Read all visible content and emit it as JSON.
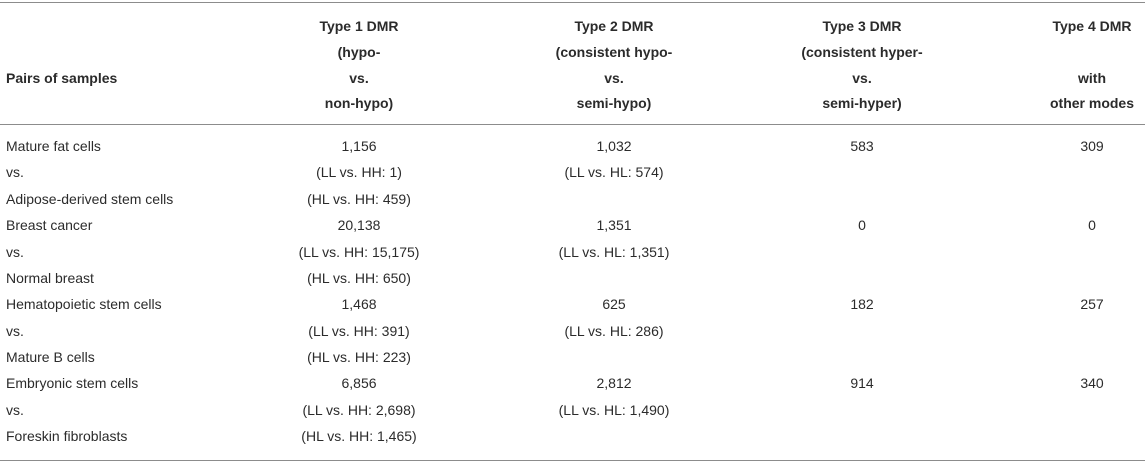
{
  "headers": {
    "pairs": "Pairs of samples",
    "type1": [
      "Type 1 DMR",
      "(hypo-",
      "vs.",
      "non-hypo)"
    ],
    "type2": [
      "Type 2 DMR",
      "(consistent hypo-",
      "vs.",
      "semi-hypo)"
    ],
    "type3": [
      "Type 3 DMR",
      "(consistent hyper-",
      "vs.",
      "semi-hyper)"
    ],
    "type4": [
      "Type 4 DMR",
      "",
      "with",
      "other modes"
    ]
  },
  "rows": [
    {
      "pair": [
        "Mature fat cells",
        "vs.",
        "Adipose-derived stem cells"
      ],
      "type1": [
        "1,156",
        "(LL vs. HH: 1)",
        "(HL vs. HH: 459)"
      ],
      "type2": [
        "1,032",
        "(LL vs. HL: 574)"
      ],
      "type3": "583",
      "type4": "309"
    },
    {
      "pair": [
        "Breast cancer",
        "vs.",
        "Normal breast"
      ],
      "type1": [
        "20,138",
        "(LL vs. HH: 15,175)",
        "(HL vs. HH: 650)"
      ],
      "type2": [
        "1,351",
        "(LL vs. HL: 1,351)"
      ],
      "type3": "0",
      "type4": "0"
    },
    {
      "pair": [
        "Hematopoietic stem cells",
        "vs.",
        "Mature B cells"
      ],
      "type1": [
        "1,468",
        "(LL vs. HH: 391)",
        "(HL vs. HH: 223)"
      ],
      "type2": [
        "625",
        "(LL vs. HL: 286)"
      ],
      "type3": "182",
      "type4": "257"
    },
    {
      "pair": [
        "Embryonic stem cells",
        "vs.",
        "Foreskin fibroblasts"
      ],
      "type1": [
        "6,856",
        "(LL vs. HH: 2,698)",
        "(HL vs. HH: 1,465)"
      ],
      "type2": [
        "2,812",
        "(LL vs. HL: 1,490)"
      ],
      "type3": "914",
      "type4": "340"
    }
  ]
}
